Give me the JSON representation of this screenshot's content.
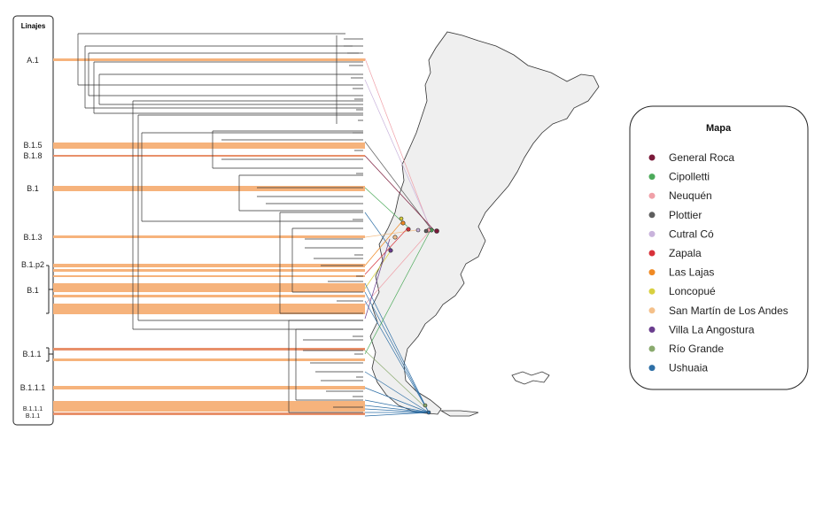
{
  "lineages_panel": {
    "title": "Linajes",
    "labels": [
      "A.1",
      "B.1.5",
      "B.1.8",
      "B.1",
      "B.1.3",
      "B.1.p2",
      "B.1",
      "B.1.1",
      "B.1.1.1",
      "B.1.1.1",
      "B.1.1"
    ]
  },
  "legend": {
    "title": "Mapa",
    "items": [
      {
        "label": "General Roca",
        "color": "#7b1a3a"
      },
      {
        "label": "Cipolletti",
        "color": "#4caa5a"
      },
      {
        "label": "Neuquén",
        "color": "#f0a0a8"
      },
      {
        "label": "Plottier",
        "color": "#5e5e5e"
      },
      {
        "label": "Cutral Có",
        "color": "#c9b3dc"
      },
      {
        "label": "Zapala",
        "color": "#d8323a"
      },
      {
        "label": "Las Lajas",
        "color": "#f08a24"
      },
      {
        "label": "Loncopué",
        "color": "#d8d040"
      },
      {
        "label": "San Martín de Los Andes",
        "color": "#f4c08a"
      },
      {
        "label": "Villa La Angostura",
        "color": "#6a3d8e"
      },
      {
        "label": "Río Grande",
        "color": "#8aaa6e"
      },
      {
        "label": "Ushuaia",
        "color": "#2e6fa6"
      }
    ]
  },
  "colors": {
    "band": "#f6b37c",
    "band_thin": "#e8906a",
    "tree": "#333333",
    "map_fill": "#efefef",
    "map_stroke": "#333333"
  }
}
